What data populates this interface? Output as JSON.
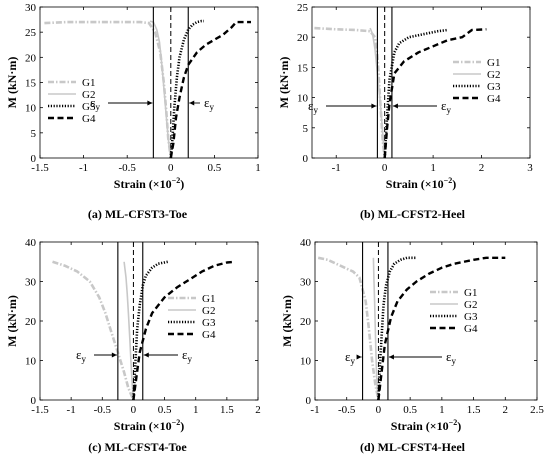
{
  "common": {
    "ylabel": "M (kN·m)",
    "xlabel_main": "Strain (",
    "xlabel_mult": "×10",
    "xlabel_exp": "−2",
    "xlabel_close": ")",
    "eps_symbol": "ε",
    "eps_sub": "y",
    "legend": [
      "G1",
      "G2",
      "G3",
      "G4"
    ],
    "series_colors": {
      "G1": "#c8c8c8",
      "G2": "#c8c8c8",
      "G3": "#000000",
      "G4": "#000000"
    },
    "series_styles": {
      "G1": "dash-dot",
      "G2": "solid",
      "G3": "dotted",
      "G4": "dashed"
    }
  },
  "chart_data": [
    {
      "type": "line",
      "title": "(a) ML-CFST3-Toe",
      "xlim": [
        -1.5,
        1
      ],
      "ylim": [
        0,
        30
      ],
      "xticks": [
        -1.5,
        -1,
        -0.5,
        0,
        0.5,
        1
      ],
      "xtick_labels": [
        "-1.5",
        "-1",
        "-0.5",
        "0",
        "0.5",
        "1"
      ],
      "yticks": [
        0,
        5,
        10,
        15,
        20,
        25,
        30
      ],
      "ytick_labels": [
        "0",
        "5",
        "10",
        "15",
        "20",
        "25",
        "30"
      ],
      "yield_lines": [
        -0.2,
        0.2
      ],
      "zero_dashed_line": 0,
      "series": [
        {
          "name": "G1",
          "x": [
            -1.45,
            -1.2,
            -0.8,
            -0.5,
            -0.35,
            -0.25,
            -0.18,
            -0.12,
            -0.08,
            -0.05,
            -0.03,
            0
          ],
          "y": [
            26.8,
            27,
            27,
            27,
            27,
            26.8,
            25,
            21,
            15,
            9,
            4,
            0
          ]
        },
        {
          "name": "G2",
          "x": [
            -0.24,
            -0.2,
            -0.16,
            -0.13,
            -0.1,
            -0.07,
            -0.05,
            -0.03,
            -0.01,
            0
          ],
          "y": [
            27.2,
            27,
            25.5,
            23,
            18,
            12,
            8,
            4,
            1,
            0
          ]
        },
        {
          "name": "G3",
          "x": [
            0,
            0.02,
            0.04,
            0.07,
            0.1,
            0.15,
            0.2,
            0.25,
            0.3,
            0.35,
            0.38
          ],
          "y": [
            0,
            4,
            10,
            16,
            20,
            23.5,
            25.5,
            26.5,
            27,
            27.2,
            27.2
          ]
        },
        {
          "name": "G4",
          "x": [
            0,
            0.03,
            0.06,
            0.1,
            0.15,
            0.2,
            0.3,
            0.4,
            0.5,
            0.6,
            0.7,
            0.75,
            0.85,
            0.92
          ],
          "y": [
            0,
            3,
            8,
            12,
            16,
            18.5,
            21,
            22.5,
            23.5,
            24.5,
            26,
            27,
            27,
            27
          ]
        }
      ]
    },
    {
      "type": "line",
      "title": "(b) ML-CFST2-Heel",
      "xlim": [
        -1.5,
        3
      ],
      "ylim": [
        0,
        25
      ],
      "xticks": [
        -1,
        0,
        1,
        2,
        3
      ],
      "xtick_labels": [
        "-1",
        "0",
        "1",
        "2",
        "3"
      ],
      "yticks": [
        0,
        5,
        10,
        15,
        20,
        25
      ],
      "ytick_labels": [
        "0",
        "5",
        "10",
        "15",
        "20",
        "25"
      ],
      "yield_lines": [
        -0.15,
        0.15
      ],
      "zero_dashed_line": 0,
      "series": [
        {
          "name": "G1",
          "x": [
            -1.45,
            -1,
            -0.6,
            -0.3,
            -0.2,
            -0.15,
            -0.12,
            -0.08,
            -0.04,
            0
          ],
          "y": [
            21.5,
            21.3,
            21.2,
            21,
            20,
            17,
            13,
            8,
            3,
            0
          ]
        },
        {
          "name": "G2",
          "x": [
            -0.3,
            -0.25,
            -0.2,
            -0.15,
            -0.1,
            -0.06,
            -0.03,
            0
          ],
          "y": [
            21.5,
            20.5,
            18,
            14,
            10,
            6,
            3,
            0
          ]
        },
        {
          "name": "G3",
          "x": [
            0,
            0.05,
            0.1,
            0.2,
            0.3,
            0.5,
            0.8,
            1.1,
            1.3
          ],
          "y": [
            0,
            7,
            13,
            17.5,
            19,
            20,
            20.5,
            21,
            21.2
          ]
        },
        {
          "name": "G4",
          "x": [
            0,
            0.05,
            0.1,
            0.2,
            0.4,
            0.7,
            1,
            1.3,
            1.6,
            1.8,
            2.1
          ],
          "y": [
            0,
            5,
            9,
            14,
            16,
            17.5,
            18.5,
            19.5,
            20,
            21.2,
            21.3
          ]
        }
      ]
    },
    {
      "type": "line",
      "title": "(c) ML-CFST4-Toe",
      "xlim": [
        -1.5,
        2
      ],
      "ylim": [
        0,
        40
      ],
      "xticks": [
        -1.5,
        -1,
        -0.5,
        0,
        0.5,
        1,
        1.5,
        2
      ],
      "xtick_labels": [
        "-1.5",
        "-1",
        "-0.5",
        "0",
        "0.5",
        "1",
        "1.5",
        "2"
      ],
      "yticks": [
        0,
        10,
        20,
        30,
        40
      ],
      "ytick_labels": [
        "0",
        "10",
        "20",
        "30",
        "40"
      ],
      "yield_lines": [
        -0.25,
        0.15
      ],
      "zero_dashed_line": 0,
      "series": [
        {
          "name": "G1",
          "x": [
            -1.3,
            -1.1,
            -0.9,
            -0.7,
            -0.55,
            -0.45,
            -0.35,
            -0.25,
            -0.15,
            -0.08,
            0
          ],
          "y": [
            35,
            34,
            32.5,
            30,
            26,
            22,
            17,
            12,
            7,
            3,
            0
          ]
        },
        {
          "name": "G2",
          "x": [
            -0.15,
            -0.12,
            -0.1,
            -0.08,
            -0.06,
            -0.04,
            -0.02,
            0
          ],
          "y": [
            35,
            31,
            27,
            22,
            16,
            10,
            4,
            0
          ]
        },
        {
          "name": "G3",
          "x": [
            0,
            0.02,
            0.04,
            0.06,
            0.1,
            0.15,
            0.2,
            0.3,
            0.4,
            0.55
          ],
          "y": [
            0,
            6,
            12,
            18,
            24,
            29,
            31.5,
            33.5,
            34.5,
            35
          ]
        },
        {
          "name": "G4",
          "x": [
            0,
            0.05,
            0.1,
            0.2,
            0.3,
            0.5,
            0.7,
            0.9,
            1.1,
            1.3,
            1.5,
            1.62
          ],
          "y": [
            0,
            6,
            12,
            18,
            22,
            26,
            28.5,
            30.5,
            32.5,
            34,
            34.8,
            35
          ]
        }
      ]
    },
    {
      "type": "line",
      "title": "(d) ML-CFST4-Heel",
      "xlim": [
        -1,
        2.5
      ],
      "ylim": [
        0,
        40
      ],
      "xticks": [
        -1,
        -0.5,
        0,
        0.5,
        1,
        1.5,
        2,
        2.5
      ],
      "xtick_labels": [
        "-1",
        "-0.5",
        "0",
        "0.5",
        "1",
        "1.5",
        "2",
        "2.5"
      ],
      "yticks": [
        0,
        10,
        20,
        30,
        40
      ],
      "ytick_labels": [
        "0",
        "10",
        "20",
        "30",
        "40"
      ],
      "yield_lines": [
        -0.25,
        0.15
      ],
      "zero_dashed_line": 0,
      "series": [
        {
          "name": "G1",
          "x": [
            -0.95,
            -0.8,
            -0.6,
            -0.4,
            -0.3,
            -0.2,
            -0.15,
            -0.1,
            -0.05,
            0
          ],
          "y": [
            36,
            35.5,
            34,
            32.5,
            31,
            25,
            18,
            10,
            4,
            0
          ]
        },
        {
          "name": "G2",
          "x": [
            -0.08,
            -0.07,
            -0.06,
            -0.05,
            -0.04,
            -0.03,
            -0.02,
            0
          ],
          "y": [
            36,
            30,
            25,
            18,
            12,
            7,
            3,
            0
          ]
        },
        {
          "name": "G3",
          "x": [
            0,
            0.02,
            0.05,
            0.08,
            0.12,
            0.18,
            0.25,
            0.35,
            0.45,
            0.6
          ],
          "y": [
            0,
            8,
            16,
            24,
            29,
            32.5,
            34.5,
            35.5,
            36,
            36
          ]
        },
        {
          "name": "G4",
          "x": [
            0,
            0.05,
            0.1,
            0.2,
            0.3,
            0.45,
            0.6,
            0.8,
            1,
            1.2,
            1.5,
            1.7,
            2
          ],
          "y": [
            0,
            7,
            14,
            21,
            25,
            28,
            30,
            32,
            33.5,
            34.5,
            35.5,
            36,
            36
          ]
        }
      ]
    }
  ]
}
